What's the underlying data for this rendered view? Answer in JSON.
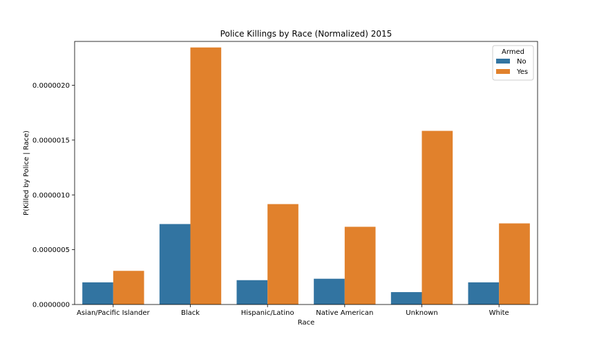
{
  "chart_data": {
    "type": "bar",
    "title": "Police Killings by Race (Normalized) 2015",
    "xlabel": "Race",
    "ylabel": "P(Killed by Police | Race)",
    "categories": [
      "Asian/Pacific Islander",
      "Black",
      "Hispanic/Latino",
      "Native American",
      "Unknown",
      "White"
    ],
    "series": [
      {
        "name": "No",
        "color": "#3274a1",
        "values": [
          2.02e-07,
          7.34e-07,
          2.22e-07,
          2.35e-07,
          1.13e-07,
          2.02e-07
        ]
      },
      {
        "name": "Yes",
        "color": "#e1812c",
        "values": [
          3.07e-07,
          2.345e-06,
          9.16e-07,
          7.09e-07,
          1.584e-06,
          7.4e-07
        ]
      }
    ],
    "ylim": [
      0,
      2.4e-06
    ],
    "yticks": [
      0,
      5e-07,
      1e-06,
      1.5e-06,
      2e-06
    ],
    "ytick_labels": [
      "0.0000000",
      "0.0000005",
      "0.0000010",
      "0.0000015",
      "0.0000020"
    ],
    "grid": false,
    "legend": {
      "title": "Armed",
      "placement": "top-right"
    }
  }
}
